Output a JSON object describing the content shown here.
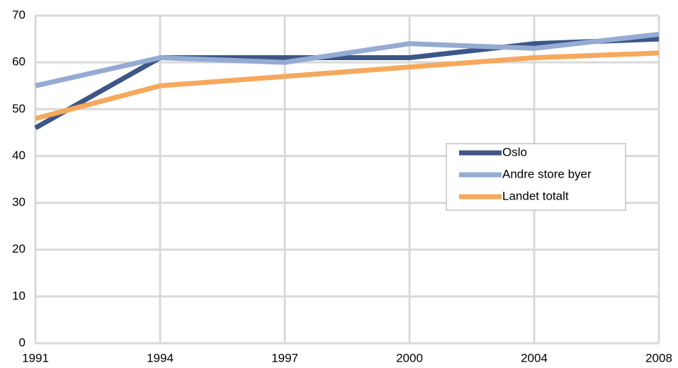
{
  "chart_data": {
    "type": "line",
    "categories": [
      "1991",
      "1994",
      "1997",
      "2000",
      "2004",
      "2008"
    ],
    "series": [
      {
        "name": "Oslo",
        "color": "#3c5686",
        "values": [
          46,
          61,
          61,
          61,
          64,
          65
        ]
      },
      {
        "name": "Andre store byer",
        "color": "#95abd3",
        "values": [
          55,
          61,
          60,
          64,
          63,
          66
        ]
      },
      {
        "name": "Landet totalt",
        "color": "#f6a85c",
        "values": [
          48,
          55,
          57,
          59,
          61,
          62
        ]
      }
    ],
    "ylim": [
      0,
      70
    ],
    "yticks": [
      0,
      10,
      20,
      30,
      40,
      50,
      60,
      70
    ],
    "grid": true,
    "legend": "right"
  }
}
